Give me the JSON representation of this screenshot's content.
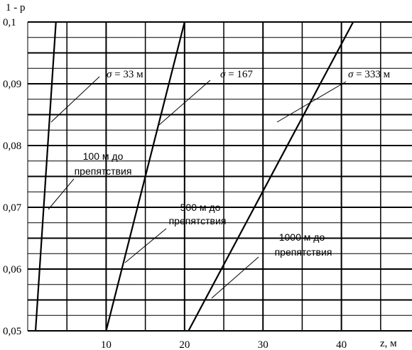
{
  "chart_data": {
    "type": "line",
    "xlabel": "z, м",
    "ylabel": "1 - p",
    "xlim": [
      0,
      49
    ],
    "ylim": [
      0.05,
      0.1
    ],
    "x_ticks": [
      {
        "value": 10,
        "label": "10"
      },
      {
        "value": 20,
        "label": "20"
      },
      {
        "value": 30,
        "label": "30"
      },
      {
        "value": 40,
        "label": "40"
      }
    ],
    "y_ticks": [
      {
        "value": 0.05,
        "label": "0,05"
      },
      {
        "value": 0.06,
        "label": "0,06"
      },
      {
        "value": 0.07,
        "label": "0,07"
      },
      {
        "value": 0.08,
        "label": "0,08"
      },
      {
        "value": 0.09,
        "label": "0,09"
      },
      {
        "value": 0.1,
        "label": "0,1"
      }
    ],
    "grid": true,
    "series": [
      {
        "name": "σ = 33 м",
        "label": "100 м до препятствия",
        "x": [
          1.0,
          3.6
        ],
        "y": [
          0.05,
          0.1
        ]
      },
      {
        "name": "σ = 167",
        "label": "500 м до препятствия",
        "x": [
          10.0,
          20.0
        ],
        "y": [
          0.05,
          0.1
        ]
      },
      {
        "name": "σ = 333 м",
        "label": "1000 м до препятствия",
        "x": [
          20.5,
          41.5
        ],
        "y": [
          0.05,
          0.1
        ]
      }
    ]
  }
}
